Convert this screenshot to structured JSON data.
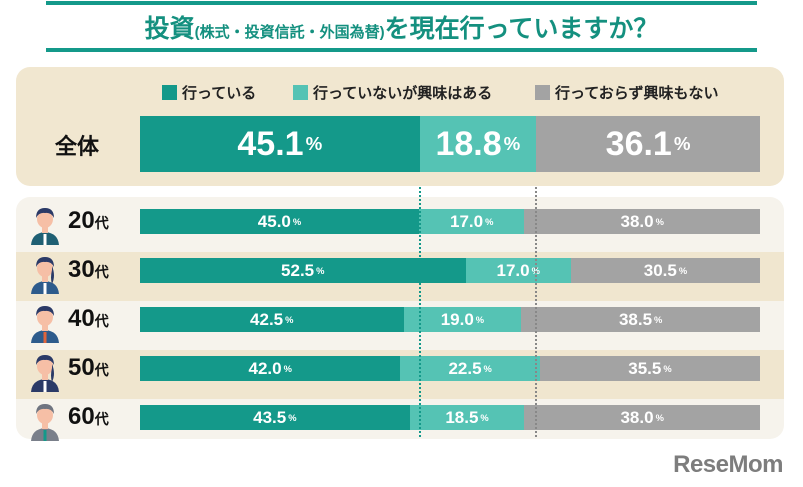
{
  "title": {
    "main_before": "投資",
    "paren": "(株式・投資信託・外国為替)",
    "main_after": "を現在行っていますか？"
  },
  "colors": {
    "accent": "#14998a",
    "doing": "#14998a",
    "interested": "#55c3b4",
    "not_interested": "#a3a3a3",
    "top_panel": "#f1e7d0",
    "bottom_panel": "#f6f3ec"
  },
  "logo": "ReseMom",
  "chart_data": {
    "type": "bar",
    "orientation": "horizontal-stacked-100",
    "title": "投資(株式・投資信託・外国為替)を現在行っていますか？",
    "unit": "%",
    "legend": [
      "行っている",
      "行っていないが興味はある",
      "行っておらず興味もない"
    ],
    "legend_position": "top",
    "total": {
      "label": "全体",
      "values": [
        45.1,
        18.8,
        36.1
      ]
    },
    "categories": [
      "20代",
      "30代",
      "40代",
      "50代",
      "60代"
    ],
    "category_parts": [
      {
        "num": "20",
        "suffix": "代"
      },
      {
        "num": "30",
        "suffix": "代"
      },
      {
        "num": "40",
        "suffix": "代"
      },
      {
        "num": "50",
        "suffix": "代"
      },
      {
        "num": "60",
        "suffix": "代"
      }
    ],
    "series": [
      {
        "name": "行っている",
        "values": [
          45.0,
          52.5,
          42.5,
          42.0,
          43.5
        ]
      },
      {
        "name": "行っていないが興味はある",
        "values": [
          17.0,
          17.0,
          19.0,
          22.5,
          18.5
        ]
      },
      {
        "name": "行っておらず興味もない",
        "values": [
          38.0,
          30.5,
          38.5,
          35.5,
          38.0
        ]
      }
    ],
    "reference_lines": "dotted lines at overall cumulative boundaries (45.1, 63.9)",
    "xlim": [
      0,
      100
    ]
  }
}
